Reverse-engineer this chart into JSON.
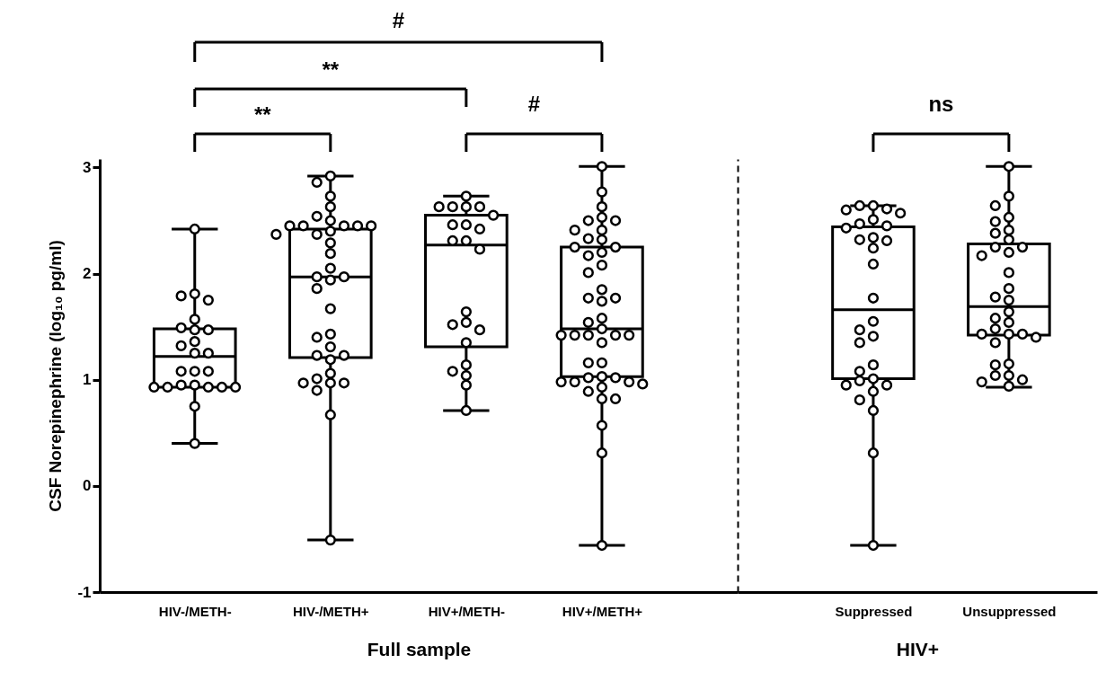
{
  "chart_data": [
    {
      "type": "box",
      "xlabel": "Full sample",
      "ylabel": "CSF Norepinephrine (log₁₀ pg/ml)",
      "categories": [
        "HIV-/METH-",
        "HIV-/METH+",
        "HIV+/METH-",
        "HIV+/METH+"
      ],
      "ylim": [
        -1,
        3.08
      ],
      "yticks": [
        -1,
        0,
        1,
        2,
        3
      ],
      "annotations": [
        "#",
        "**",
        "**",
        "#"
      ],
      "boxes": [
        {
          "low": 0.4,
          "q1": 0.93,
          "median": 1.22,
          "q3": 1.48,
          "high": 2.42
        },
        {
          "low": -0.51,
          "q1": 1.21,
          "median": 1.97,
          "q3": 2.42,
          "high": 2.92
        },
        {
          "low": 0.71,
          "q1": 1.31,
          "median": 2.27,
          "q3": 2.55,
          "high": 2.73
        },
        {
          "low": -0.56,
          "q1": 1.03,
          "median": 1.48,
          "q3": 2.25,
          "high": 3.01
        }
      ],
      "series": [
        {
          "type": "scatter",
          "marker": "circle",
          "color": "#000000",
          "x": [
            "HIV-/METH-",
            "HIV-/METH-",
            "HIV-/METH-",
            "HIV-/METH-",
            "HIV-/METH-",
            "HIV-/METH-",
            "HIV-/METH-",
            "HIV-/METH-",
            "HIV-/METH-",
            "HIV-/METH-",
            "HIV-/METH-",
            "HIV-/METH-",
            "HIV-/METH-",
            "HIV-/METH-",
            "HIV-/METH-",
            "HIV-/METH-",
            "HIV-/METH-",
            "HIV-/METH-",
            "HIV-/METH-",
            "HIV-/METH-",
            "HIV-/METH-",
            "HIV-/METH-",
            "HIV-/METH-",
            "HIV-/METH-",
            "HIV-/METH+",
            "HIV-/METH+",
            "HIV-/METH+",
            "HIV-/METH+",
            "HIV-/METH+",
            "HIV-/METH+",
            "HIV-/METH+",
            "HIV-/METH+",
            "HIV-/METH+",
            "HIV-/METH+",
            "HIV-/METH+",
            "HIV-/METH+",
            "HIV-/METH+",
            "HIV-/METH+",
            "HIV-/METH+",
            "HIV-/METH+",
            "HIV-/METH+",
            "HIV-/METH+",
            "HIV-/METH+",
            "HIV-/METH+",
            "HIV-/METH+",
            "HIV-/METH+",
            "HIV-/METH+",
            "HIV-/METH+",
            "HIV-/METH+",
            "HIV-/METH+",
            "HIV-/METH+",
            "HIV-/METH+",
            "HIV-/METH+",
            "HIV-/METH+",
            "HIV-/METH+",
            "HIV-/METH+",
            "HIV-/METH+",
            "HIV-/METH+",
            "HIV-/METH+",
            "HIV-/METH+",
            "HIV+/METH-",
            "HIV+/METH-",
            "HIV+/METH-",
            "HIV+/METH-",
            "HIV+/METH-",
            "HIV+/METH-",
            "HIV+/METH-",
            "HIV+/METH-",
            "HIV+/METH-",
            "HIV+/METH-",
            "HIV+/METH-",
            "HIV+/METH-",
            "HIV+/METH-",
            "HIV+/METH-",
            "HIV+/METH-",
            "HIV+/METH-",
            "HIV+/METH-",
            "HIV+/METH-",
            "HIV+/METH-",
            "HIV+/METH-",
            "HIV+/METH-",
            "HIV+/METH-",
            "HIV+/METH+",
            "HIV+/METH+",
            "HIV+/METH+",
            "HIV+/METH+",
            "HIV+/METH+",
            "HIV+/METH+",
            "HIV+/METH+",
            "HIV+/METH+",
            "HIV+/METH+",
            "HIV+/METH+",
            "HIV+/METH+",
            "HIV+/METH+",
            "HIV+/METH+",
            "HIV+/METH+",
            "HIV+/METH+",
            "HIV+/METH+",
            "HIV+/METH+",
            "HIV+/METH+",
            "HIV+/METH+",
            "HIV+/METH+",
            "HIV+/METH+",
            "HIV+/METH+",
            "HIV+/METH+",
            "HIV+/METH+",
            "HIV+/METH+",
            "HIV+/METH+",
            "HIV+/METH+",
            "HIV+/METH+",
            "HIV+/METH+",
            "HIV+/METH+",
            "HIV+/METH+",
            "HIV+/METH+",
            "HIV+/METH+",
            "HIV+/METH+",
            "HIV+/METH+",
            "HIV+/METH+",
            "HIV+/METH+",
            "HIV+/METH+",
            "HIV+/METH+",
            "HIV+/METH+",
            "HIV+/METH+",
            "HIV+/METH+",
            "HIV+/METH+",
            "HIV+/METH+",
            "HIV+/METH+"
          ],
          "values": [
            2.42,
            1.81,
            1.79,
            1.75,
            1.57,
            1.49,
            1.47,
            1.47,
            1.36,
            1.32,
            1.25,
            1.25,
            1.08,
            1.08,
            1.08,
            0.95,
            0.95,
            0.93,
            0.93,
            0.93,
            0.93,
            0.93,
            0.75,
            0.4,
            2.92,
            2.86,
            2.73,
            2.63,
            2.54,
            2.5,
            2.45,
            2.45,
            2.45,
            2.45,
            2.45,
            2.4,
            2.37,
            2.37,
            2.29,
            2.19,
            2.05,
            1.97,
            1.97,
            1.94,
            1.86,
            1.67,
            1.43,
            1.4,
            1.31,
            1.23,
            1.23,
            1.19,
            1.06,
            1.01,
            0.97,
            0.97,
            0.97,
            0.9,
            0.67,
            -0.51,
            2.73,
            2.63,
            2.63,
            2.63,
            2.63,
            2.55,
            2.46,
            2.46,
            2.42,
            2.31,
            2.31,
            2.23,
            1.64,
            1.54,
            1.52,
            1.47,
            1.35,
            1.14,
            1.08,
            1.04,
            0.95,
            0.71,
            3.01,
            2.77,
            2.63,
            2.53,
            2.5,
            2.5,
            2.41,
            2.41,
            2.33,
            2.32,
            2.25,
            2.25,
            2.2,
            2.17,
            2.08,
            2.01,
            1.85,
            1.77,
            1.77,
            1.74,
            1.58,
            1.54,
            1.48,
            1.42,
            1.42,
            1.42,
            1.42,
            1.42,
            1.35,
            1.16,
            1.16,
            1.03,
            1.02,
            1.02,
            0.98,
            0.98,
            0.98,
            0.96,
            0.93,
            0.89,
            0.82,
            0.82,
            0.57,
            0.31,
            -0.56
          ]
        }
      ]
    },
    {
      "type": "box",
      "xlabel": "HIV+",
      "categories": [
        "Suppressed",
        "Unsuppressed"
      ],
      "ylim": [
        -1,
        3.08
      ],
      "yticks": [
        -1,
        0,
        1,
        2,
        3
      ],
      "tick_labels": "x",
      "annotations": [
        "ns"
      ],
      "boxes": [
        {
          "low": -0.56,
          "q1": 1.01,
          "median": 1.66,
          "q3": 2.44,
          "high": 2.64
        },
        {
          "low": 0.93,
          "q1": 1.42,
          "median": 1.69,
          "q3": 2.28,
          "high": 3.01
        }
      ],
      "series": [
        {
          "type": "scatter",
          "marker": "circle",
          "color": "#000000",
          "x": [
            "Suppressed",
            "Suppressed",
            "Suppressed",
            "Suppressed",
            "Suppressed",
            "Suppressed",
            "Suppressed",
            "Suppressed",
            "Suppressed",
            "Suppressed",
            "Suppressed",
            "Suppressed",
            "Suppressed",
            "Suppressed",
            "Suppressed",
            "Suppressed",
            "Suppressed",
            "Suppressed",
            "Suppressed",
            "Suppressed",
            "Suppressed",
            "Suppressed",
            "Suppressed",
            "Suppressed",
            "Suppressed",
            "Suppressed",
            "Suppressed",
            "Suppressed",
            "Suppressed",
            "Suppressed",
            "Unsuppressed",
            "Unsuppressed",
            "Unsuppressed",
            "Unsuppressed",
            "Unsuppressed",
            "Unsuppressed",
            "Unsuppressed",
            "Unsuppressed",
            "Unsuppressed",
            "Unsuppressed",
            "Unsuppressed",
            "Unsuppressed",
            "Unsuppressed",
            "Unsuppressed",
            "Unsuppressed",
            "Unsuppressed",
            "Unsuppressed",
            "Unsuppressed",
            "Unsuppressed",
            "Unsuppressed",
            "Unsuppressed",
            "Unsuppressed",
            "Unsuppressed",
            "Unsuppressed",
            "Unsuppressed",
            "Unsuppressed",
            "Unsuppressed",
            "Unsuppressed",
            "Unsuppressed",
            "Unsuppressed",
            "Unsuppressed",
            "Unsuppressed"
          ],
          "values": [
            2.64,
            2.64,
            2.61,
            2.6,
            2.57,
            2.51,
            2.47,
            2.45,
            2.43,
            2.34,
            2.32,
            2.31,
            2.24,
            2.09,
            1.77,
            1.55,
            1.47,
            1.41,
            1.35,
            1.14,
            1.08,
            1.01,
            0.99,
            0.95,
            0.95,
            0.89,
            0.81,
            0.71,
            0.31,
            -0.56,
            3.01,
            2.73,
            2.64,
            2.53,
            2.49,
            2.41,
            2.38,
            2.32,
            2.25,
            2.25,
            2.2,
            2.17,
            2.01,
            1.86,
            1.78,
            1.75,
            1.64,
            1.58,
            1.54,
            1.48,
            1.43,
            1.43,
            1.43,
            1.4,
            1.35,
            1.15,
            1.14,
            1.04,
            1.04,
            1.0,
            0.98,
            0.94
          ]
        }
      ]
    }
  ]
}
